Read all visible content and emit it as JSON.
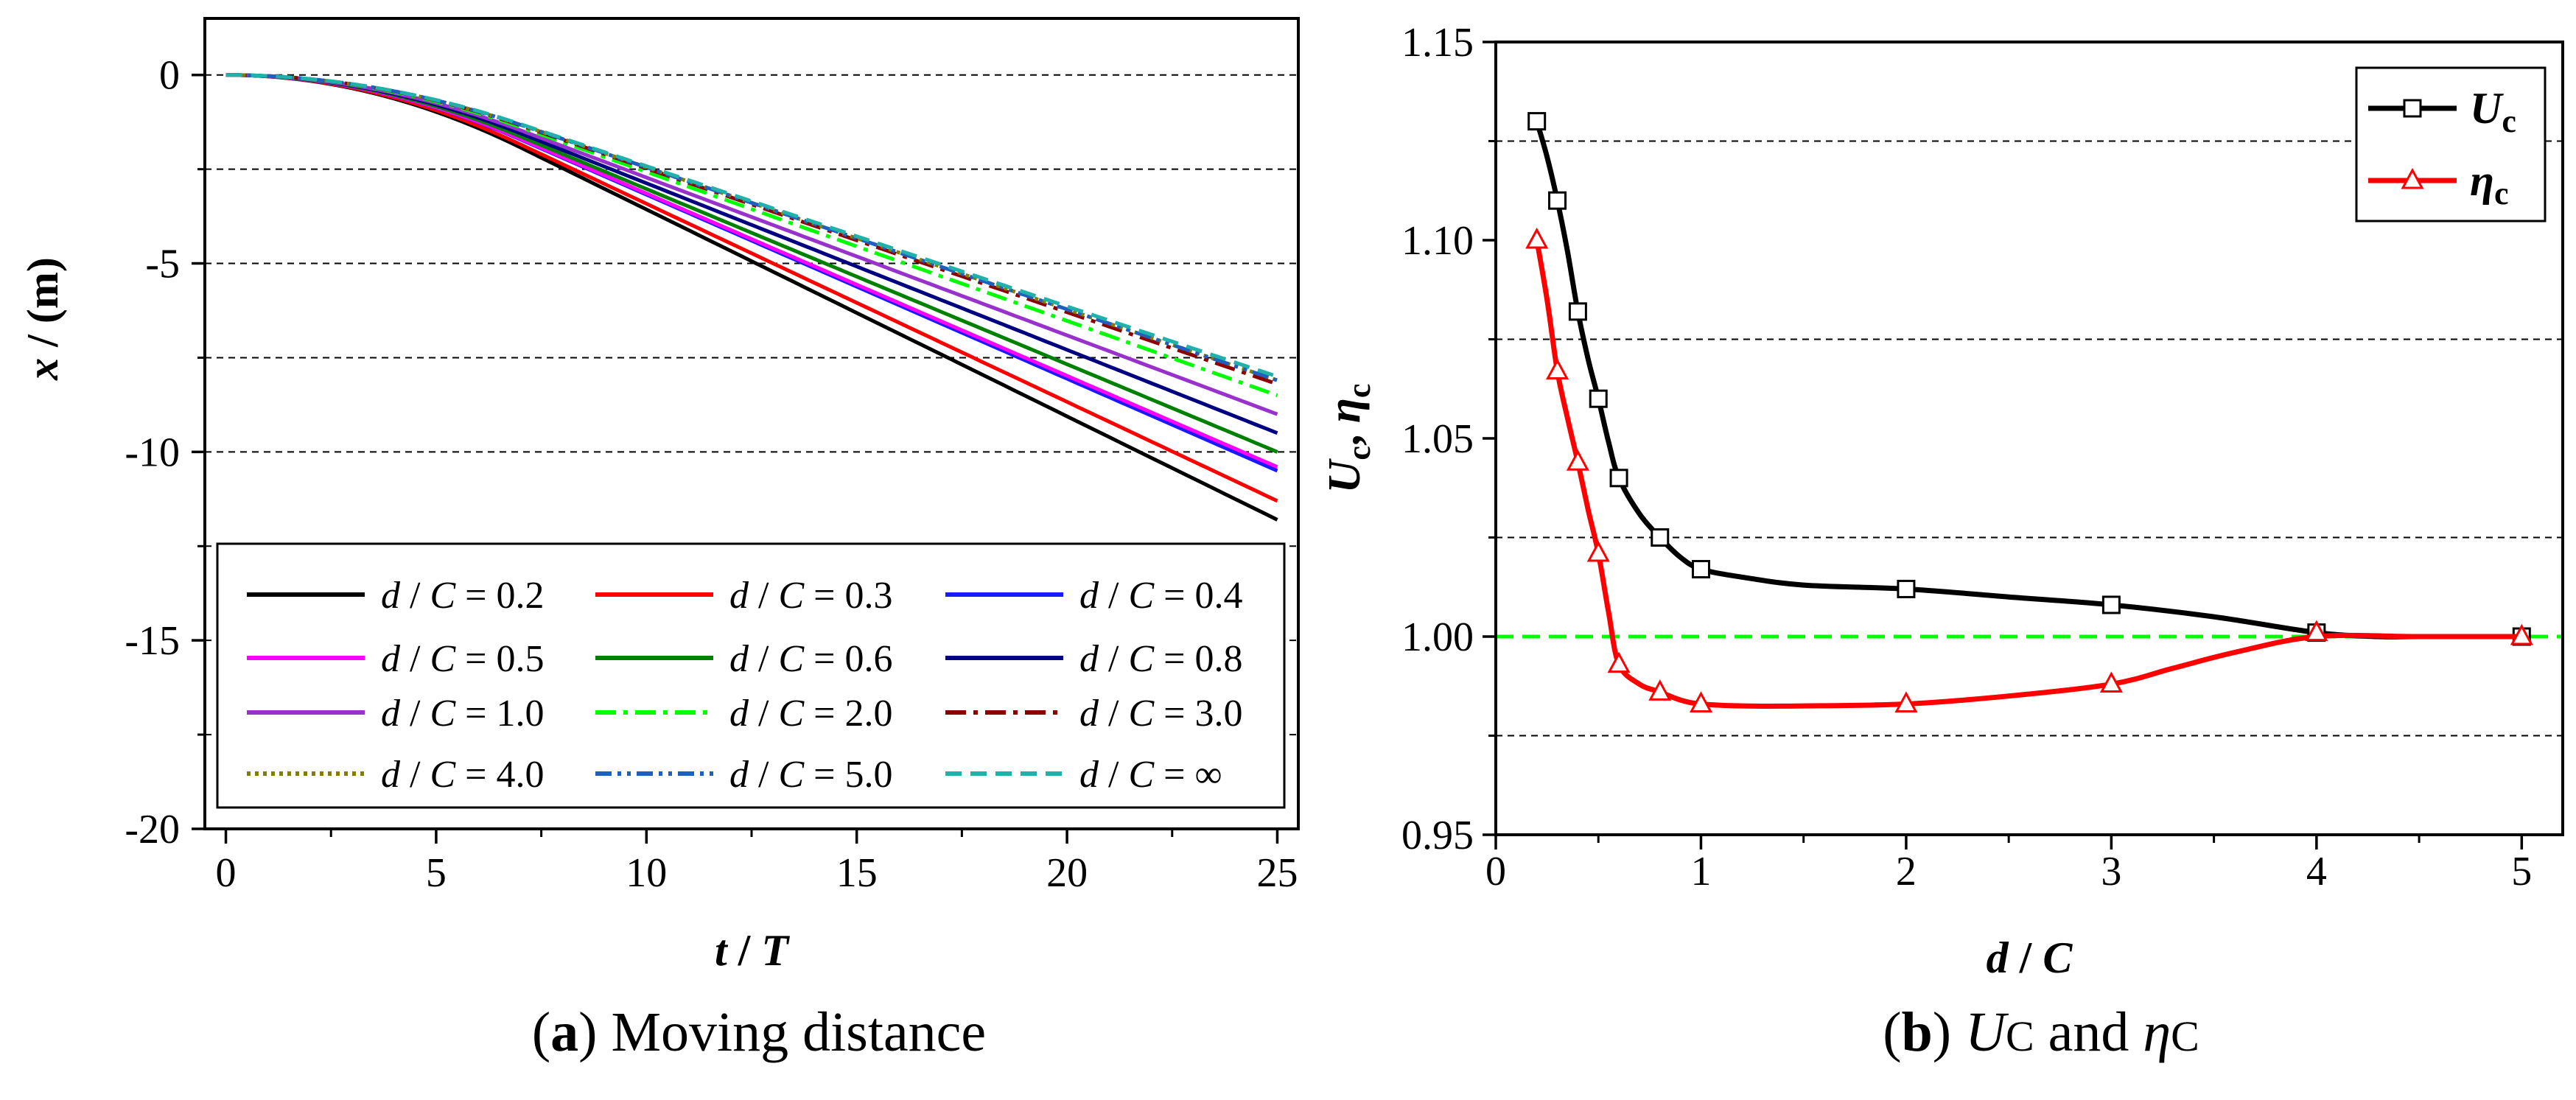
{
  "panel_a": {
    "caption_letter": "a",
    "caption_text": "Moving distance"
  },
  "panel_b": {
    "caption_letter": "b",
    "caption_u": "U",
    "caption_c1": "C",
    "caption_and": "and",
    "caption_eta": "η",
    "caption_c2": "C"
  },
  "colors": {
    "black": "#000000",
    "red": "#ff0000",
    "blue": "#1a1aff",
    "magenta": "#ff00ff",
    "green": "#008000",
    "navy": "#000080",
    "purple": "#9932cc",
    "lime": "#00ff00",
    "darkred": "#8b0000",
    "olive": "#808000",
    "steelblue": "#1f5fbf",
    "teal": "#20b2aa"
  },
  "chart_data": [
    {
      "type": "line",
      "title": "Moving distance",
      "xlabel": "t / T",
      "xlabel_parts": [
        "t",
        " / ",
        "T"
      ],
      "ylabel": "x / (m)",
      "ylabel_parts": [
        "x",
        " / (m)"
      ],
      "xlim": [
        -0.5,
        25.5
      ],
      "ylim": [
        -20,
        1.5
      ],
      "xticks": [
        0,
        5,
        10,
        15,
        20,
        25
      ],
      "xtick_labels": [
        "0",
        "5",
        "10",
        "15",
        "20",
        "25"
      ],
      "yticks": [
        0,
        -5,
        -10,
        -15,
        -20
      ],
      "ytick_labels": [
        "0",
        "-5",
        "-10",
        "-15",
        "-20"
      ],
      "gridlines_y": [
        0,
        -2.5,
        -5,
        -7.5,
        -10,
        -12.5,
        -15,
        -17.5
      ],
      "grid": "horizontal dashed",
      "legend_position": "bottom",
      "series": [
        {
          "name": "d / C = 0.2",
          "ratio": "0.2",
          "end_value": -11.8,
          "color": "#000000",
          "dash": "solid"
        },
        {
          "name": "d / C = 0.3",
          "ratio": "0.3",
          "end_value": -11.3,
          "color": "#ff0000",
          "dash": "solid"
        },
        {
          "name": "d / C = 0.4",
          "ratio": "0.4",
          "end_value": -10.5,
          "color": "#1a1aff",
          "dash": "solid"
        },
        {
          "name": "d / C = 0.5",
          "ratio": "0.5",
          "end_value": -10.4,
          "color": "#ff00ff",
          "dash": "solid"
        },
        {
          "name": "d / C = 0.6",
          "ratio": "0.6",
          "end_value": -10.0,
          "color": "#008000",
          "dash": "solid"
        },
        {
          "name": "d / C = 0.8",
          "ratio": "0.8",
          "end_value": -9.5,
          "color": "#000080",
          "dash": "solid"
        },
        {
          "name": "d / C = 1.0",
          "ratio": "1.0",
          "end_value": -9.0,
          "color": "#9932cc",
          "dash": "solid"
        },
        {
          "name": "d / C = 2.0",
          "ratio": "2.0",
          "end_value": -8.5,
          "color": "#00ff00",
          "dash": "dashdot"
        },
        {
          "name": "d / C = 3.0",
          "ratio": "3.0",
          "end_value": -8.2,
          "color": "#8b0000",
          "dash": "dashdot"
        },
        {
          "name": "d / C = 4.0",
          "ratio": "4.0",
          "end_value": -8.1,
          "color": "#808000",
          "dash": "dot"
        },
        {
          "name": "d / C = 5.0",
          "ratio": "5.0",
          "end_value": -8.1,
          "color": "#1f5fbf",
          "dash": "dashdotdot"
        },
        {
          "name": "d / C = ∞",
          "ratio": "∞",
          "end_value": -8.0,
          "color": "#20b2aa",
          "dash": "dash"
        }
      ]
    },
    {
      "type": "line",
      "title": "UC and ηC",
      "xlabel": "d / C",
      "xlabel_parts": [
        "d",
        " / ",
        "C"
      ],
      "ylabel": "Uc, ηc",
      "ylabel_parts": [
        "U",
        "c",
        ", ",
        "η",
        "c"
      ],
      "xlim": [
        0,
        5.2
      ],
      "ylim": [
        0.95,
        1.15
      ],
      "xticks": [
        0,
        1,
        2,
        3,
        4,
        5
      ],
      "xtick_labels": [
        "0",
        "1",
        "2",
        "3",
        "4",
        "5"
      ],
      "yticks": [
        0.95,
        1.0,
        1.05,
        1.1,
        1.15
      ],
      "ytick_labels": [
        "0.95",
        "1.00",
        "1.05",
        "1.10",
        "1.15"
      ],
      "gridlines_y": [
        0.975,
        1.025,
        1.075,
        1.125
      ],
      "reference_line": 1.0,
      "grid": "horizontal dashed",
      "legend_position": "top-right",
      "series": [
        {
          "name": "Uc",
          "name_main": "U",
          "name_sub": "c",
          "color": "#000000",
          "marker": "square",
          "x": [
            0.2,
            0.3,
            0.4,
            0.5,
            0.6,
            0.8,
            1.0,
            2.0,
            3.0,
            4.0,
            5.0
          ],
          "y": [
            1.13,
            1.11,
            1.082,
            1.06,
            1.04,
            1.025,
            1.017,
            1.012,
            1.008,
            1.001,
            1.0
          ],
          "curve_x": [
            0.2,
            0.25,
            0.3,
            0.35,
            0.4,
            0.45,
            0.5,
            0.55,
            0.6,
            0.7,
            0.8,
            0.9,
            1.0,
            1.2,
            1.5,
            2.0,
            2.5,
            3.0,
            3.5,
            4.0,
            4.3,
            4.5,
            5.0
          ],
          "curve_y": [
            1.13,
            1.121,
            1.11,
            1.097,
            1.082,
            1.07,
            1.06,
            1.049,
            1.04,
            1.031,
            1.025,
            1.02,
            1.017,
            1.015,
            1.013,
            1.012,
            1.01,
            1.008,
            1.005,
            1.001,
            1.0,
            1.0,
            1.0
          ]
        },
        {
          "name": "ηc",
          "name_main": "η",
          "name_sub": "c",
          "color": "#ff0000",
          "marker": "triangle",
          "x": [
            0.2,
            0.3,
            0.4,
            0.5,
            0.6,
            0.8,
            1.0,
            2.0,
            3.0,
            4.0,
            5.0
          ],
          "y": [
            1.1,
            1.067,
            1.044,
            1.021,
            0.993,
            0.986,
            0.983,
            0.983,
            0.988,
            1.001,
            1.0
          ],
          "curve_x": [
            0.2,
            0.25,
            0.3,
            0.35,
            0.4,
            0.45,
            0.5,
            0.55,
            0.6,
            0.7,
            0.8,
            0.9,
            1.0,
            1.2,
            1.5,
            2.0,
            2.5,
            3.0,
            3.3,
            3.6,
            4.0,
            4.5,
            5.0
          ],
          "curve_y": [
            1.1,
            1.085,
            1.067,
            1.055,
            1.044,
            1.032,
            1.021,
            1.006,
            0.993,
            0.988,
            0.986,
            0.984,
            0.983,
            0.9825,
            0.9825,
            0.983,
            0.985,
            0.988,
            0.992,
            0.996,
            1.0,
            1.0,
            1.0
          ]
        }
      ]
    }
  ]
}
